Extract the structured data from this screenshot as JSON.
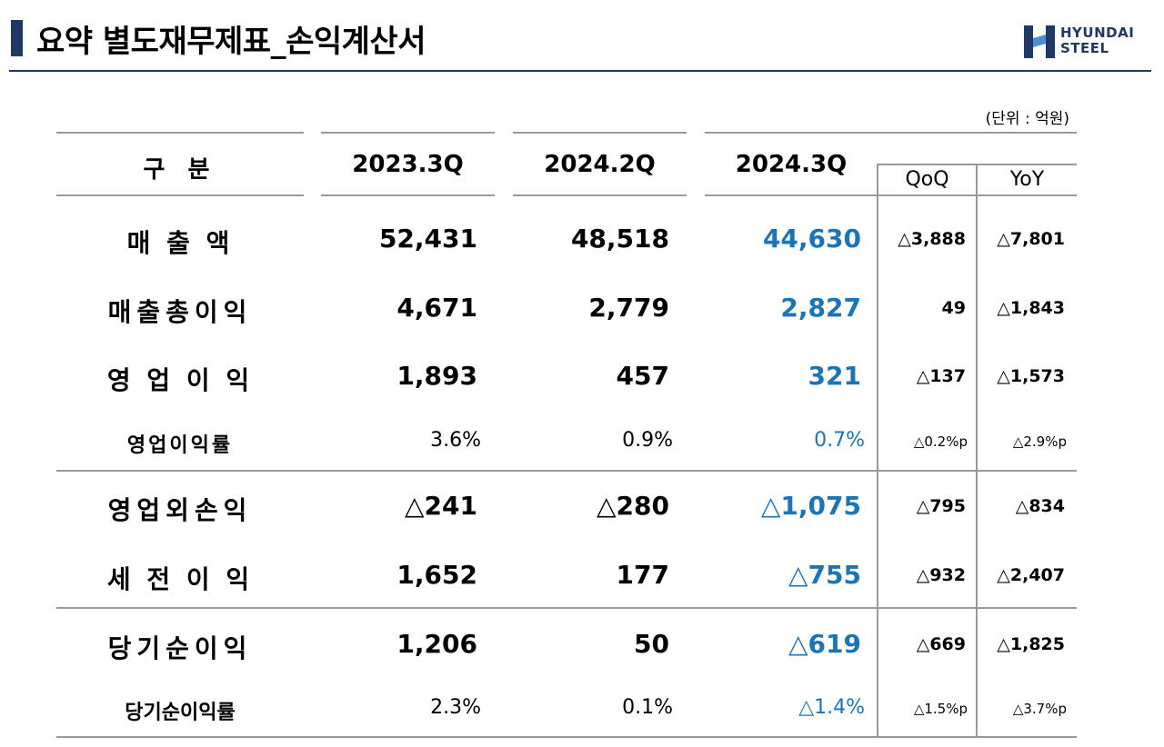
{
  "title": "요약 별도재무제표_손익계산서",
  "logo": {
    "line1": "HYUNDAI",
    "line2": "STEEL"
  },
  "unit": "(단위 : 억원)",
  "columns": {
    "label": "구 분",
    "c1": "2023.3Q",
    "c2": "2024.2Q",
    "c3": "2024.3Q",
    "qoq": "QoQ",
    "yoy": "YoY"
  },
  "rows": [
    {
      "label": "매   출   액",
      "c1": "52,431",
      "c2": "48,518",
      "c3": "44,630",
      "qoq": "△3,888",
      "yoy": "△7,801"
    },
    {
      "label": "매출총이익",
      "c1": "4,671",
      "c2": "2,779",
      "c3": "2,827",
      "qoq": "49",
      "yoy": "△1,843"
    },
    {
      "label": "영 업 이 익",
      "c1": "1,893",
      "c2": "457",
      "c3": "321",
      "qoq": "△137",
      "yoy": "△1,573"
    },
    {
      "label": "영업이익률",
      "c1": "3.6%",
      "c2": "0.9%",
      "c3": "0.7%",
      "qoq": "△0.2%p",
      "yoy": "△2.9%p"
    },
    {
      "label": "영업외손익",
      "c1": "△241",
      "c2": "△280",
      "c3": "△1,075",
      "qoq": "△795",
      "yoy": "△834"
    },
    {
      "label": "세 전 이 익",
      "c1": "1,652",
      "c2": "177",
      "c3": "△755",
      "qoq": "△932",
      "yoy": "△2,407"
    },
    {
      "label": "당기순이익",
      "c1": "1,206",
      "c2": "50",
      "c3": "△619",
      "qoq": "△669",
      "yoy": "△1,825"
    },
    {
      "label": "당기순이익률",
      "c1": "2.3%",
      "c2": "0.1%",
      "c3": "△1.4%",
      "qoq": "△1.5%p",
      "yoy": "△3.7%p"
    }
  ],
  "colors": {
    "accent": "#1a74b8",
    "brand": "#1f3864"
  }
}
